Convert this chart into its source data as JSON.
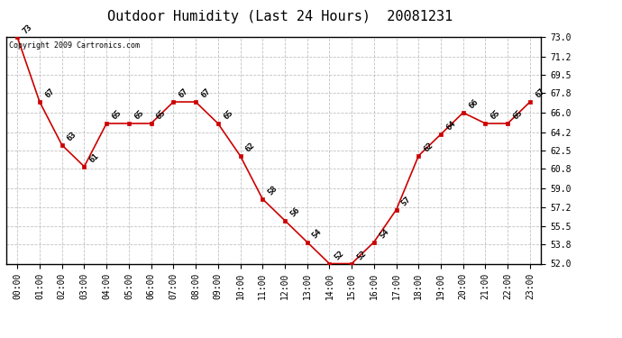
{
  "title": "Outdoor Humidity (Last 24 Hours)  20081231",
  "copyright": "Copyright 2009 Cartronics.com",
  "x_labels": [
    "00:00",
    "01:00",
    "02:00",
    "03:00",
    "04:00",
    "05:00",
    "06:00",
    "07:00",
    "08:00",
    "09:00",
    "10:00",
    "11:00",
    "12:00",
    "13:00",
    "14:00",
    "15:00",
    "16:00",
    "17:00",
    "18:00",
    "19:00",
    "20:00",
    "21:00",
    "22:00",
    "23:00"
  ],
  "y_values": [
    73,
    67,
    63,
    61,
    65,
    65,
    65,
    67,
    67,
    65,
    62,
    58,
    56,
    54,
    52,
    52,
    54,
    57,
    62,
    64,
    66,
    65,
    65,
    67
  ],
  "ylim_min": 52.0,
  "ylim_max": 73.0,
  "yticks": [
    52.0,
    53.8,
    55.5,
    57.2,
    59.0,
    60.8,
    62.5,
    64.2,
    66.0,
    67.8,
    69.5,
    71.2,
    73.0
  ],
  "line_color": "#cc0000",
  "marker_color": "#cc0000",
  "marker_size": 3,
  "background_color": "#ffffff",
  "plot_bg_color": "#ffffff",
  "grid_color": "#bbbbbb",
  "title_fontsize": 11,
  "tick_fontsize": 7,
  "annotation_fontsize": 6.5,
  "copyright_fontsize": 6
}
